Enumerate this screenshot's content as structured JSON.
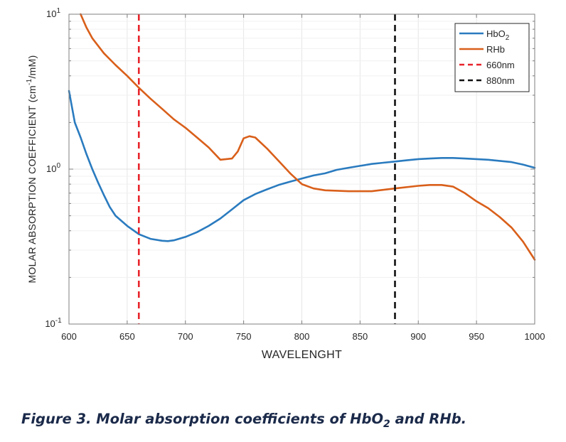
{
  "caption": {
    "prefix": "Figure 3. Molar absorption coefficients of HbO",
    "sub": "2",
    "suffix": " and RHb."
  },
  "chart_data": {
    "type": "line",
    "title": "",
    "xlabel": "WAVELENGHT",
    "ylabel": "MOLAR ABSORPTION COEFFICIENT (cm",
    "ylabel_sup": "-1",
    "ylabel_suffix": "/mM)",
    "x_scale": "linear",
    "y_scale": "log",
    "xlim": [
      600,
      1000
    ],
    "ylim": [
      0.1,
      10
    ],
    "xticks": [
      "600",
      "650",
      "700",
      "750",
      "800",
      "850",
      "900",
      "950",
      "1000"
    ],
    "yticks": [
      {
        "base": "10",
        "exp": "-1",
        "value": 0.1
      },
      {
        "base": "10",
        "exp": "0",
        "value": 1
      },
      {
        "base": "10",
        "exp": "1",
        "value": 10
      }
    ],
    "grid": true,
    "legend_position": "top-right",
    "series": [
      {
        "name": "HbO",
        "name_sub": "2",
        "color": "#2a7bbf",
        "style": "solid",
        "x": [
          600,
          605,
          610,
          615,
          620,
          625,
          630,
          635,
          640,
          650,
          660,
          670,
          680,
          685,
          690,
          700,
          710,
          720,
          730,
          740,
          750,
          760,
          770,
          780,
          790,
          800,
          810,
          820,
          830,
          840,
          850,
          860,
          870,
          880,
          890,
          900,
          910,
          920,
          925,
          930,
          940,
          950,
          960,
          970,
          980,
          990,
          1000
        ],
        "y": [
          3.2,
          2.0,
          1.6,
          1.25,
          1.0,
          0.82,
          0.68,
          0.57,
          0.5,
          0.43,
          0.38,
          0.355,
          0.345,
          0.343,
          0.347,
          0.365,
          0.392,
          0.43,
          0.48,
          0.55,
          0.63,
          0.69,
          0.74,
          0.79,
          0.83,
          0.87,
          0.91,
          0.94,
          0.99,
          1.02,
          1.05,
          1.08,
          1.1,
          1.12,
          1.14,
          1.16,
          1.17,
          1.18,
          1.18,
          1.18,
          1.17,
          1.16,
          1.15,
          1.13,
          1.11,
          1.07,
          1.02
        ]
      },
      {
        "name": "RHb",
        "color": "#d95f1a",
        "style": "solid",
        "x": [
          610,
          615,
          620,
          630,
          640,
          650,
          660,
          670,
          680,
          690,
          700,
          710,
          720,
          730,
          740,
          745,
          750,
          755,
          760,
          770,
          780,
          790,
          800,
          810,
          820,
          840,
          860,
          880,
          900,
          910,
          920,
          930,
          940,
          950,
          960,
          970,
          980,
          990,
          1000
        ],
        "y": [
          10.0,
          8.2,
          7.0,
          5.6,
          4.7,
          4.0,
          3.35,
          2.85,
          2.45,
          2.1,
          1.85,
          1.6,
          1.38,
          1.15,
          1.17,
          1.3,
          1.58,
          1.63,
          1.6,
          1.36,
          1.13,
          0.94,
          0.8,
          0.75,
          0.73,
          0.72,
          0.72,
          0.75,
          0.78,
          0.79,
          0.79,
          0.77,
          0.7,
          0.62,
          0.56,
          0.49,
          0.42,
          0.34,
          0.26
        ]
      },
      {
        "name": "660nm",
        "color": "#e8232a",
        "style": "dashed",
        "vline": 660
      },
      {
        "name": "880nm",
        "color": "#111111",
        "style": "dashed",
        "vline": 880
      }
    ]
  }
}
